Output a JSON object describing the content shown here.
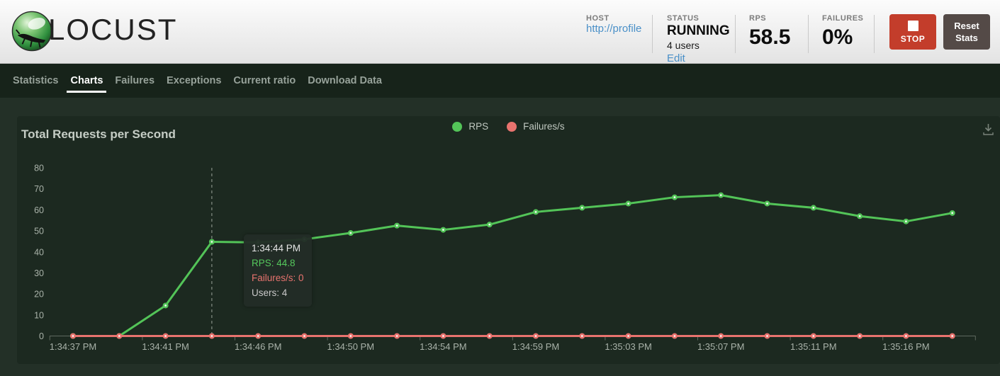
{
  "header": {
    "logo_text": "LOCUST",
    "host": {
      "label": "HOST",
      "value": "http://profile"
    },
    "status": {
      "label": "STATUS",
      "value": "RUNNING",
      "users": "4 users",
      "edit_label": "Edit"
    },
    "rps": {
      "label": "RPS",
      "value": "58.5"
    },
    "failures": {
      "label": "FAILURES",
      "value": "0%"
    },
    "stop_label": "STOP",
    "reset_label": "Reset Stats"
  },
  "nav": {
    "tabs": [
      {
        "label": "Statistics",
        "active": false
      },
      {
        "label": "Charts",
        "active": true
      },
      {
        "label": "Failures",
        "active": false
      },
      {
        "label": "Exceptions",
        "active": false
      },
      {
        "label": "Current ratio",
        "active": false
      },
      {
        "label": "Download Data",
        "active": false
      }
    ]
  },
  "chart": {
    "title": "Total Requests per Second",
    "legend": [
      {
        "label": "RPS",
        "color": "#53c458"
      },
      {
        "label": "Failures/s",
        "color": "#e8736e"
      }
    ],
    "tooltip": {
      "time": "1:34:44 PM",
      "rps": "RPS: 44.8",
      "failures": "Failures/s: 0",
      "users": "Users: 4"
    }
  },
  "chart_data": {
    "type": "line",
    "title": "Total Requests per Second",
    "x_labels_shown": [
      "1:34:37 PM",
      "1:34:41 PM",
      "1:34:46 PM",
      "1:34:50 PM",
      "1:34:54 PM",
      "1:34:59 PM",
      "1:35:03 PM",
      "1:35:07 PM",
      "1:35:11 PM",
      "1:35:16 PM"
    ],
    "label_every_n_points": 2,
    "series": [
      {
        "name": "RPS",
        "color": "#53c458",
        "values": [
          0,
          0,
          14.5,
          44.8,
          44.5,
          46,
          49,
          52.5,
          50.5,
          53,
          59,
          61,
          63,
          66,
          67,
          63,
          61,
          57,
          54.5,
          58.5
        ]
      },
      {
        "name": "Failures/s",
        "color": "#e8736e",
        "values": [
          0,
          0,
          0,
          0,
          0,
          0,
          0,
          0,
          0,
          0,
          0,
          0,
          0,
          0,
          0,
          0,
          0,
          0,
          0,
          0
        ]
      }
    ],
    "ylim": [
      0,
      80
    ],
    "y_ticks": [
      0,
      10,
      20,
      30,
      40,
      50,
      60,
      70,
      80
    ],
    "grid": false,
    "legend_position": "top-center",
    "tooltip_point": {
      "index": 3,
      "time": "1:34:44 PM",
      "rps": 44.8,
      "failures": 0,
      "users": 4
    }
  }
}
